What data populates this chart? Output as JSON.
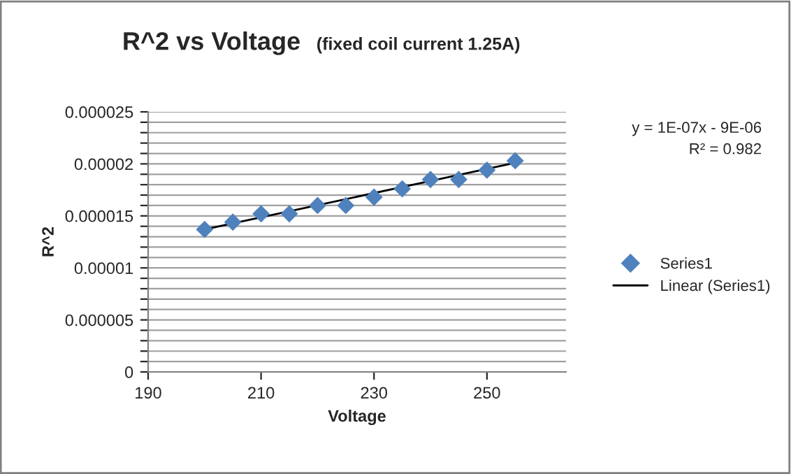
{
  "chart_data": {
    "type": "scatter",
    "title": "R^2 vs Voltage",
    "subtitle": "(fixed coil current 1.25A)",
    "xlabel": "Voltage",
    "ylabel": "R^2",
    "x": [
      200,
      205,
      210,
      215,
      220,
      225,
      230,
      235,
      240,
      245,
      250,
      255
    ],
    "series": [
      {
        "name": "Series1",
        "color": "#4f81bd",
        "marker": "diamond",
        "values": [
          1.37e-05,
          1.44e-05,
          1.52e-05,
          1.52e-05,
          1.6e-05,
          1.6e-05,
          1.68e-05,
          1.76e-05,
          1.85e-05,
          1.85e-05,
          1.94e-05,
          2.03e-05
        ]
      },
      {
        "name": "Linear (Series1)",
        "type": "line",
        "color": "#000000",
        "x": [
          200,
          255
        ],
        "values": [
          1.37e-05,
          2.01e-05
        ]
      }
    ],
    "annotations": [
      "y = 1E-07x - 9E-06",
      "R² = 0.982"
    ],
    "xlim": [
      190,
      264
    ],
    "xticks": [
      190,
      210,
      230,
      250
    ],
    "ylim": [
      0,
      2.5e-05
    ],
    "yticks": [
      {
        "value": 0,
        "label": "0"
      },
      {
        "value": 1e-06,
        "label": null
      },
      {
        "value": 2e-06,
        "label": null
      },
      {
        "value": 3e-06,
        "label": null
      },
      {
        "value": 4e-06,
        "label": null
      },
      {
        "value": 5e-06,
        "label": "0.000005"
      },
      {
        "value": 6e-06,
        "label": null
      },
      {
        "value": 7e-06,
        "label": null
      },
      {
        "value": 8e-06,
        "label": null
      },
      {
        "value": 9e-06,
        "label": null
      },
      {
        "value": 1e-05,
        "label": "0.00001"
      },
      {
        "value": 1.1e-05,
        "label": null
      },
      {
        "value": 1.2e-05,
        "label": null
      },
      {
        "value": 1.3e-05,
        "label": null
      },
      {
        "value": 1.4e-05,
        "label": null
      },
      {
        "value": 1.5e-05,
        "label": "0.000015"
      },
      {
        "value": 1.6e-05,
        "label": null
      },
      {
        "value": 1.7e-05,
        "label": null
      },
      {
        "value": 1.8e-05,
        "label": null
      },
      {
        "value": 1.9e-05,
        "label": null
      },
      {
        "value": 2e-05,
        "label": "0.00002"
      },
      {
        "value": 2.1e-05,
        "label": null
      },
      {
        "value": 2.2e-05,
        "label": null
      },
      {
        "value": 2.3e-05,
        "label": null
      },
      {
        "value": 2.4e-05,
        "label": null
      },
      {
        "value": 2.5e-05,
        "label": "0.000025"
      }
    ],
    "grid": "y",
    "legend": "right"
  }
}
